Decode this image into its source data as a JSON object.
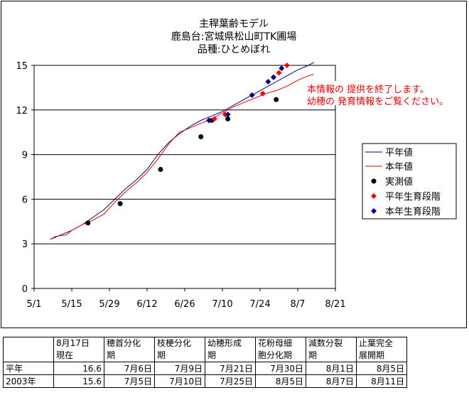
{
  "chart_data": {
    "type": "line",
    "title_lines": [
      "主稈葉齢モデル",
      "鹿島台:宮城県松山町TK圃場",
      "品種:ひとめぼれ"
    ],
    "x_ticks": [
      "5/1",
      "5/15",
      "5/29",
      "6/12",
      "6/26",
      "7/10",
      "7/24",
      "8/7",
      "8/21"
    ],
    "x_tick_days": [
      0,
      14,
      28,
      42,
      56,
      70,
      84,
      98,
      112
    ],
    "y_ticks": [
      "0",
      "3",
      "6",
      "9",
      "12",
      "15"
    ],
    "xlim_days": [
      0,
      112
    ],
    "ylim": [
      0,
      15
    ],
    "grid": "horizontal",
    "legend_position": "right",
    "legend": [
      "平年値",
      "本年値",
      "実測値",
      "平年生育段階",
      "本年生育段階"
    ],
    "series": [
      {
        "name": "平年値",
        "color": "#000080",
        "points": [
          [
            6,
            3.3
          ],
          [
            10,
            3.6
          ],
          [
            14,
            3.9
          ],
          [
            18,
            4.3
          ],
          [
            22,
            4.8
          ],
          [
            26,
            5.3
          ],
          [
            30,
            6.0
          ],
          [
            34,
            6.7
          ],
          [
            38,
            7.3
          ],
          [
            42,
            8.0
          ],
          [
            46,
            9.0
          ],
          [
            50,
            9.8
          ],
          [
            54,
            10.4
          ],
          [
            58,
            10.9
          ],
          [
            62,
            11.3
          ],
          [
            66,
            11.6
          ],
          [
            70,
            11.9
          ],
          [
            74,
            12.3
          ],
          [
            78,
            12.7
          ],
          [
            82,
            13.1
          ],
          [
            86,
            13.5
          ],
          [
            90,
            13.9
          ],
          [
            94,
            14.3
          ],
          [
            98,
            14.7
          ],
          [
            102,
            15.0
          ],
          [
            104,
            15.2
          ]
        ]
      },
      {
        "name": "本年値",
        "color": "#dd0000",
        "points": [
          [
            6,
            3.3
          ],
          [
            8,
            3.5
          ],
          [
            12,
            3.6
          ],
          [
            14,
            3.9
          ],
          [
            18,
            4.3
          ],
          [
            22,
            4.6
          ],
          [
            26,
            5.0
          ],
          [
            30,
            5.8
          ],
          [
            34,
            6.5
          ],
          [
            38,
            7.1
          ],
          [
            42,
            7.8
          ],
          [
            46,
            8.7
          ],
          [
            50,
            9.7
          ],
          [
            54,
            10.5
          ],
          [
            58,
            10.8
          ],
          [
            62,
            11.1
          ],
          [
            66,
            11.4
          ],
          [
            70,
            11.8
          ],
          [
            74,
            12.2
          ],
          [
            78,
            12.5
          ],
          [
            82,
            12.8
          ],
          [
            86,
            13.1
          ],
          [
            90,
            13.3
          ],
          [
            94,
            13.6
          ],
          [
            98,
            14.0
          ],
          [
            102,
            14.3
          ],
          [
            104,
            14.4
          ]
        ]
      }
    ],
    "measured": [
      [
        20,
        4.4
      ],
      [
        32,
        5.7
      ],
      [
        47,
        8.0
      ],
      [
        62,
        10.2
      ],
      [
        66,
        11.3
      ],
      [
        72,
        11.4
      ],
      [
        90,
        12.7
      ]
    ],
    "normal_stages": [
      [
        67,
        11.4
      ],
      [
        71,
        11.7
      ],
      [
        85,
        13.1
      ],
      [
        89,
        14.2
      ],
      [
        91,
        14.5
      ],
      [
        94,
        15.0
      ]
    ],
    "current_stages": [
      [
        65,
        11.3
      ],
      [
        72,
        11.7
      ],
      [
        81,
        13.0
      ],
      [
        87,
        13.9
      ],
      [
        89,
        14.2
      ],
      [
        92,
        14.8
      ]
    ],
    "marker_colors": {
      "measured": "#000000",
      "normal_stages": "#ff0000",
      "current_stages": "#000080"
    },
    "notice_lines": [
      "本情報の 提供を終了します。",
      "幼穂の 発育情報をご覧ください。"
    ]
  },
  "table": {
    "header": [
      "",
      "8月17日\n現在",
      "穂首分化\n期",
      "枝梗分化\n期",
      "幼穂形成\n期",
      "花粉母細\n胞分化期",
      "減数分裂\n期",
      "止葉完全\n展開期"
    ],
    "rows": [
      [
        "平年",
        "16.6",
        "7月6日",
        "7月9日",
        "7月21日",
        "7月30日",
        "8月1日",
        "8月5日"
      ],
      [
        "2003年",
        "15.6",
        "7月5日",
        "7月10日",
        "7月25日",
        "8月5日",
        "8月7日",
        "8月11日"
      ]
    ]
  }
}
